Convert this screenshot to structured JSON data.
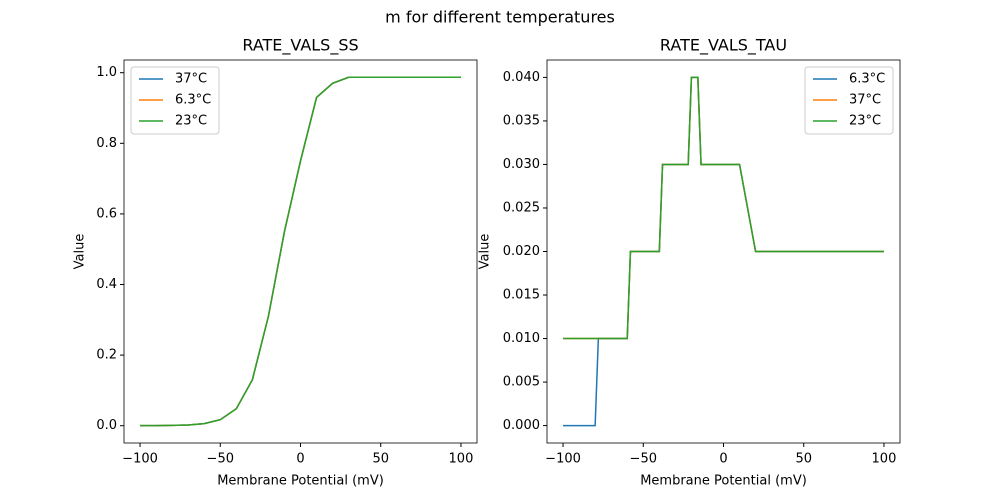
{
  "title": "m for different temperatures",
  "chart_data": [
    {
      "type": "line",
      "title": "RATE_VALS_SS",
      "xlabel": "Membrane Potential (mV)",
      "ylabel": "Value",
      "x": [
        -100,
        -90,
        -80,
        -70,
        -60,
        -50,
        -40,
        -30,
        -20,
        -10,
        0,
        10,
        20,
        30,
        40,
        50,
        60,
        70,
        80,
        90,
        100
      ],
      "series": [
        {
          "name": "37°C",
          "color": "#1f77b4",
          "values": [
            0.0001,
            0.0003,
            0.0008,
            0.002,
            0.006,
            0.017,
            0.048,
            0.13,
            0.31,
            0.55,
            0.75,
            0.93,
            0.97,
            0.987,
            0.987,
            0.987,
            0.987,
            0.987,
            0.987,
            0.987,
            0.987
          ]
        },
        {
          "name": "6.3°C",
          "color": "#ff7f0e",
          "values": [
            0.0001,
            0.0003,
            0.0008,
            0.002,
            0.006,
            0.017,
            0.048,
            0.13,
            0.31,
            0.55,
            0.75,
            0.93,
            0.97,
            0.987,
            0.987,
            0.987,
            0.987,
            0.987,
            0.987,
            0.987,
            0.987
          ]
        },
        {
          "name": "23°C",
          "color": "#2ca02c",
          "values": [
            0.0001,
            0.0003,
            0.0008,
            0.002,
            0.006,
            0.017,
            0.048,
            0.13,
            0.31,
            0.55,
            0.75,
            0.93,
            0.97,
            0.987,
            0.987,
            0.987,
            0.987,
            0.987,
            0.987,
            0.987,
            0.987
          ]
        }
      ],
      "xlim": [
        -110,
        110
      ],
      "ylim": [
        -0.049,
        1.036
      ],
      "xticks": [
        {
          "value": -100,
          "label": "−100"
        },
        {
          "value": -50,
          "label": "−50"
        },
        0,
        50,
        100
      ],
      "yticks": [
        {
          "value": 0,
          "label": "0.0"
        },
        0.2,
        0.4,
        0.6,
        0.8,
        {
          "value": 1,
          "label": "1.0"
        }
      ],
      "legend": "upper left"
    },
    {
      "type": "line",
      "title": "RATE_VALS_TAU",
      "xlabel": "Membrane Potential (mV)",
      "ylabel": "Value",
      "x": [
        -100,
        -80,
        -78,
        -60,
        -58,
        -40,
        -38,
        -22,
        -20,
        -16,
        -14,
        10,
        20,
        100
      ],
      "series": [
        {
          "name": "6.3°C",
          "color": "#1f77b4",
          "values": [
            0,
            0,
            0.01,
            0.01,
            0.02,
            0.02,
            0.03,
            0.03,
            0.04,
            0.04,
            0.03,
            0.03,
            0.02,
            0.02
          ]
        },
        {
          "name": "37°C",
          "color": "#ff7f0e",
          "values": [
            0.01,
            0.01,
            0.01,
            0.01,
            0.02,
            0.02,
            0.03,
            0.03,
            0.04,
            0.04,
            0.03,
            0.03,
            0.02,
            0.02
          ]
        },
        {
          "name": "23°C",
          "color": "#2ca02c",
          "values": [
            0.01,
            0.01,
            0.01,
            0.01,
            0.02,
            0.02,
            0.03,
            0.03,
            0.04,
            0.04,
            0.03,
            0.03,
            0.02,
            0.02
          ]
        }
      ],
      "xlim": [
        -110,
        110
      ],
      "ylim": [
        -0.002,
        0.042
      ],
      "xticks": [
        {
          "value": -100,
          "label": "−100"
        },
        {
          "value": -50,
          "label": "−50"
        },
        0,
        50,
        100
      ],
      "yticks": [
        {
          "value": 0,
          "label": "0.000"
        },
        {
          "value": 0.005,
          "label": "0.005"
        },
        {
          "value": 0.01,
          "label": "0.010"
        },
        {
          "value": 0.015,
          "label": "0.015"
        },
        {
          "value": 0.02,
          "label": "0.020"
        },
        {
          "value": 0.025,
          "label": "0.025"
        },
        {
          "value": 0.03,
          "label": "0.030"
        },
        {
          "value": 0.035,
          "label": "0.035"
        },
        {
          "value": 0.04,
          "label": "0.040"
        }
      ],
      "legend": "upper right"
    }
  ]
}
